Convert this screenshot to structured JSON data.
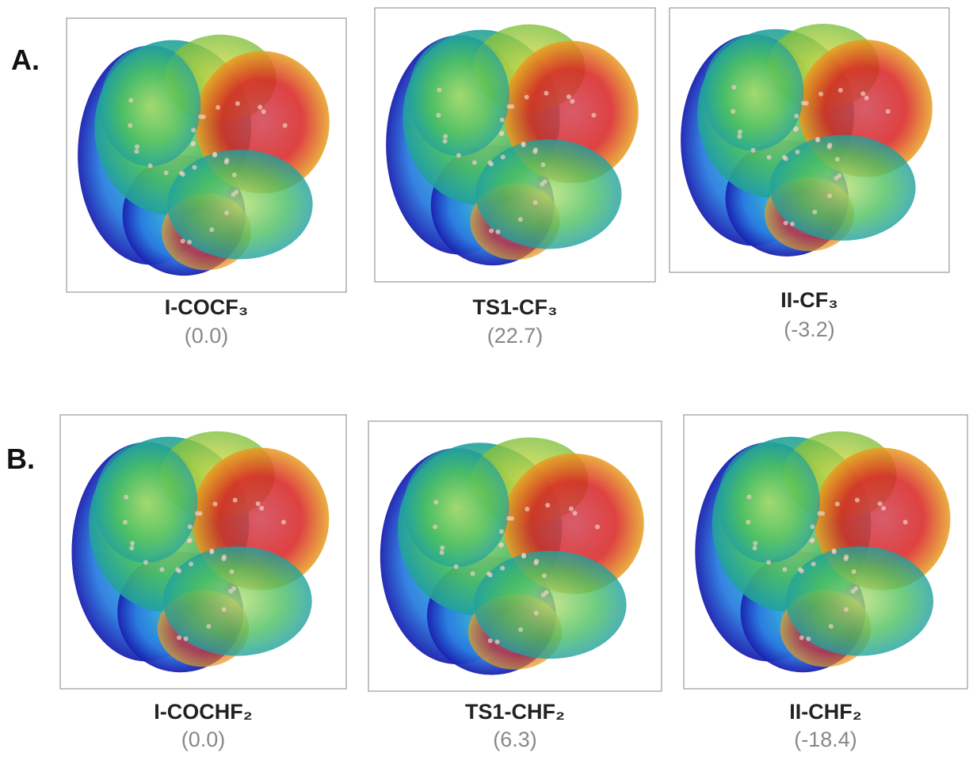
{
  "panels": [
    {
      "label": "A.",
      "items": [
        {
          "name": "I-COCF₃",
          "energy": "(0.0)"
        },
        {
          "name": "TS1-CF₃",
          "energy": "(22.7)"
        },
        {
          "name": "II-CF₃",
          "energy": "(-3.2)"
        }
      ]
    },
    {
      "label": "B.",
      "items": [
        {
          "name": "I-COCHF₂",
          "energy": "(0.0)"
        },
        {
          "name": "TS1-CHF₂",
          "energy": "(6.3)"
        },
        {
          "name": "II-CHF₂",
          "energy": "(-18.4)"
        }
      ]
    }
  ]
}
